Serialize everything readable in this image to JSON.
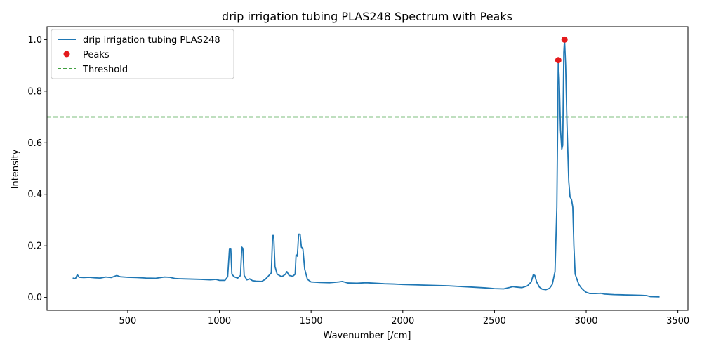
{
  "chart_data": {
    "type": "line",
    "title": "drip irrigation tubing PLAS248 Spectrum with Peaks",
    "xlabel": "Wavenumber [/cm]",
    "ylabel": "Intensity",
    "xlim": [
      60,
      3555
    ],
    "ylim": [
      -0.05,
      1.05
    ],
    "xticks": [
      500,
      1000,
      1500,
      2000,
      2500,
      3000,
      3500
    ],
    "yticks": [
      0.0,
      0.2,
      0.4,
      0.6,
      0.8,
      1.0
    ],
    "grid": false,
    "legend_position": "top-left",
    "series": [
      {
        "name": "drip irrigation tubing PLAS248",
        "color": "#1f77b4",
        "points": [
          [
            200,
            0.075
          ],
          [
            215,
            0.073
          ],
          [
            225,
            0.088
          ],
          [
            235,
            0.078
          ],
          [
            260,
            0.077
          ],
          [
            290,
            0.078
          ],
          [
            320,
            0.076
          ],
          [
            350,
            0.075
          ],
          [
            380,
            0.079
          ],
          [
            410,
            0.077
          ],
          [
            440,
            0.085
          ],
          [
            460,
            0.08
          ],
          [
            500,
            0.078
          ],
          [
            550,
            0.077
          ],
          [
            600,
            0.075
          ],
          [
            650,
            0.074
          ],
          [
            700,
            0.079
          ],
          [
            730,
            0.078
          ],
          [
            760,
            0.073
          ],
          [
            800,
            0.072
          ],
          [
            850,
            0.071
          ],
          [
            900,
            0.07
          ],
          [
            950,
            0.068
          ],
          [
            980,
            0.07
          ],
          [
            1000,
            0.066
          ],
          [
            1030,
            0.066
          ],
          [
            1045,
            0.08
          ],
          [
            1055,
            0.19
          ],
          [
            1062,
            0.19
          ],
          [
            1068,
            0.09
          ],
          [
            1080,
            0.08
          ],
          [
            1100,
            0.075
          ],
          [
            1115,
            0.085
          ],
          [
            1122,
            0.195
          ],
          [
            1128,
            0.19
          ],
          [
            1135,
            0.085
          ],
          [
            1150,
            0.068
          ],
          [
            1165,
            0.072
          ],
          [
            1180,
            0.065
          ],
          [
            1200,
            0.063
          ],
          [
            1230,
            0.062
          ],
          [
            1250,
            0.07
          ],
          [
            1270,
            0.085
          ],
          [
            1283,
            0.095
          ],
          [
            1290,
            0.24
          ],
          [
            1296,
            0.24
          ],
          [
            1303,
            0.12
          ],
          [
            1315,
            0.09
          ],
          [
            1340,
            0.08
          ],
          [
            1360,
            0.09
          ],
          [
            1368,
            0.1
          ],
          [
            1380,
            0.085
          ],
          [
            1400,
            0.082
          ],
          [
            1413,
            0.09
          ],
          [
            1418,
            0.165
          ],
          [
            1425,
            0.16
          ],
          [
            1432,
            0.245
          ],
          [
            1440,
            0.245
          ],
          [
            1447,
            0.195
          ],
          [
            1455,
            0.19
          ],
          [
            1465,
            0.11
          ],
          [
            1480,
            0.07
          ],
          [
            1500,
            0.06
          ],
          [
            1550,
            0.058
          ],
          [
            1600,
            0.057
          ],
          [
            1650,
            0.06
          ],
          [
            1670,
            0.062
          ],
          [
            1700,
            0.056
          ],
          [
            1750,
            0.055
          ],
          [
            1800,
            0.057
          ],
          [
            1850,
            0.055
          ],
          [
            1900,
            0.053
          ],
          [
            1950,
            0.052
          ],
          [
            2000,
            0.05
          ],
          [
            2050,
            0.049
          ],
          [
            2100,
            0.048
          ],
          [
            2150,
            0.047
          ],
          [
            2200,
            0.046
          ],
          [
            2250,
            0.045
          ],
          [
            2300,
            0.043
          ],
          [
            2350,
            0.041
          ],
          [
            2400,
            0.039
          ],
          [
            2450,
            0.037
          ],
          [
            2500,
            0.034
          ],
          [
            2550,
            0.033
          ],
          [
            2580,
            0.038
          ],
          [
            2600,
            0.042
          ],
          [
            2620,
            0.04
          ],
          [
            2650,
            0.038
          ],
          [
            2680,
            0.045
          ],
          [
            2700,
            0.06
          ],
          [
            2712,
            0.088
          ],
          [
            2720,
            0.085
          ],
          [
            2730,
            0.06
          ],
          [
            2745,
            0.04
          ],
          [
            2760,
            0.032
          ],
          [
            2780,
            0.03
          ],
          [
            2800,
            0.035
          ],
          [
            2815,
            0.05
          ],
          [
            2830,
            0.1
          ],
          [
            2840,
            0.35
          ],
          [
            2848,
            0.92
          ],
          [
            2853,
            0.85
          ],
          [
            2860,
            0.65
          ],
          [
            2867,
            0.575
          ],
          [
            2872,
            0.59
          ],
          [
            2878,
            0.95
          ],
          [
            2882,
            1.0
          ],
          [
            2888,
            0.9
          ],
          [
            2895,
            0.68
          ],
          [
            2905,
            0.45
          ],
          [
            2912,
            0.39
          ],
          [
            2920,
            0.38
          ],
          [
            2927,
            0.35
          ],
          [
            2933,
            0.2
          ],
          [
            2940,
            0.09
          ],
          [
            2950,
            0.07
          ],
          [
            2960,
            0.05
          ],
          [
            2975,
            0.035
          ],
          [
            2990,
            0.025
          ],
          [
            3000,
            0.02
          ],
          [
            3020,
            0.015
          ],
          [
            3050,
            0.015
          ],
          [
            3080,
            0.016
          ],
          [
            3100,
            0.013
          ],
          [
            3150,
            0.011
          ],
          [
            3200,
            0.01
          ],
          [
            3250,
            0.009
          ],
          [
            3300,
            0.008
          ],
          [
            3330,
            0.007
          ],
          [
            3350,
            0.003
          ],
          [
            3400,
            0.002
          ]
        ]
      }
    ],
    "peaks": {
      "name": "Peaks",
      "color": "#e41a1c",
      "points": [
        [
          2848,
          0.92
        ],
        [
          2882,
          1.0
        ]
      ]
    },
    "threshold": {
      "name": "Threshold",
      "color": "#008000",
      "value": 0.7
    }
  }
}
